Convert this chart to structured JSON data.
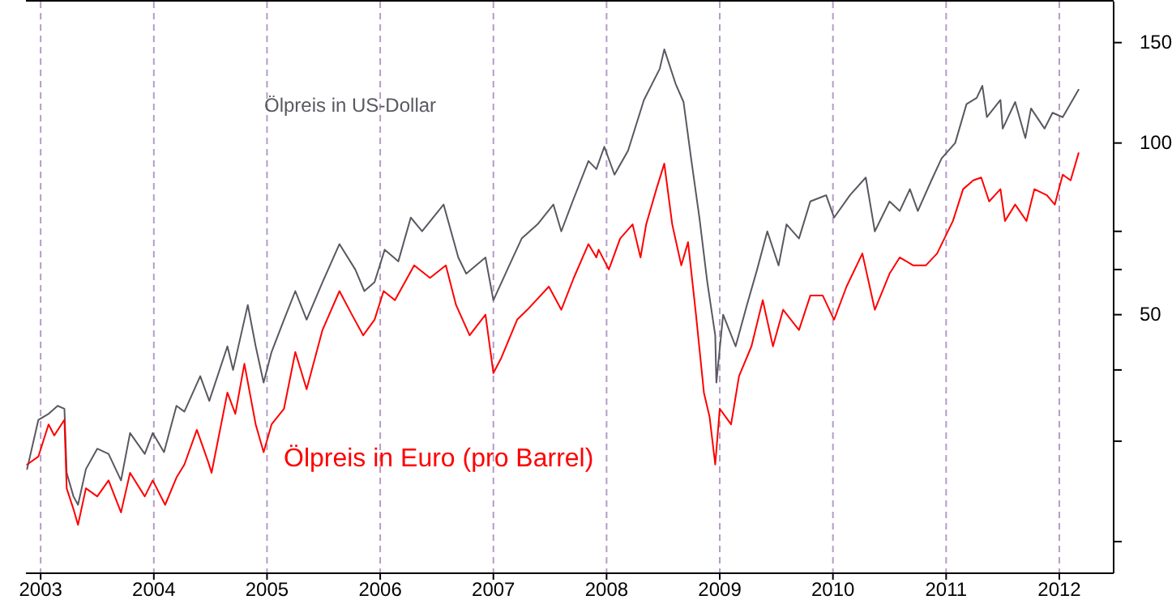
{
  "chart_data": {
    "type": "line",
    "log": "y",
    "grid": "x",
    "legend": false,
    "xlim": [
      2002.87,
      2012.48
    ],
    "xticks": [
      2003,
      2004,
      2005,
      2006,
      2007,
      2008,
      2009,
      2010,
      2011,
      2012
    ],
    "ylim": [
      17.6,
      177
    ],
    "yticks": [
      {
        "value": 20,
        "label": null
      },
      {
        "value": 30,
        "label": null
      },
      {
        "value": 40,
        "label": null
      },
      50,
      {
        "value": 60,
        "label": null
      },
      {
        "value": 70,
        "label": null
      },
      100,
      150
    ],
    "series": [
      {
        "name": "Ölpreis in US-Dollar",
        "color": "#5a5860",
        "x": [
          2002.88,
          2002.98,
          2003.07,
          2003.15,
          2003.21,
          2003.23,
          2003.29,
          2003.33,
          2003.4,
          2003.5,
          2003.6,
          2003.71,
          2003.79,
          2003.92,
          2003.99,
          2004.09,
          2004.2,
          2004.27,
          2004.41,
          2004.49,
          2004.65,
          2004.7,
          2004.83,
          2004.9,
          2004.97,
          2005.04,
          2005.15,
          2005.25,
          2005.35,
          2005.49,
          2005.64,
          2005.78,
          2005.86,
          2005.95,
          2006.04,
          2006.16,
          2006.27,
          2006.37,
          2006.56,
          2006.69,
          2006.76,
          2006.93,
          2007.0,
          2007.14,
          2007.25,
          2007.39,
          2007.53,
          2007.6,
          2007.7,
          2007.84,
          2007.91,
          2007.98,
          2008.07,
          2008.19,
          2008.33,
          2008.47,
          2008.51,
          2008.61,
          2008.68,
          2008.75,
          2008.82,
          2008.89,
          2008.96,
          2008.97,
          2009.03,
          2009.14,
          2009.24,
          2009.33,
          2009.42,
          2009.52,
          2009.59,
          2009.7,
          2009.8,
          2009.94,
          2010.01,
          2010.15,
          2010.29,
          2010.37,
          2010.5,
          2010.59,
          2010.68,
          2010.75,
          2010.87,
          2010.96,
          2011.08,
          2011.18,
          2011.27,
          2011.32,
          2011.36,
          2011.48,
          2011.5,
          2011.61,
          2011.7,
          2011.75,
          2011.87,
          2011.94,
          2012.03,
          2012.17
        ],
        "values": [
          26.8,
          32.7,
          33.5,
          34.6,
          34.2,
          26.4,
          24.0,
          23.2,
          26.8,
          29.1,
          28.5,
          25.6,
          31.0,
          28.5,
          31.0,
          28.7,
          34.6,
          33.8,
          39,
          35.3,
          44,
          40,
          52,
          44,
          38,
          43,
          49,
          55,
          49,
          57,
          66.5,
          60,
          55,
          57,
          65,
          62,
          74,
          70,
          78,
          63,
          59,
          63,
          53,
          61,
          68,
          72,
          78,
          70,
          79,
          93,
          90,
          98.5,
          88,
          97,
          119,
          135,
          146,
          127,
          118,
          93,
          74,
          57,
          46,
          38,
          50,
          44,
          52,
          60,
          70,
          61,
          72,
          68,
          79,
          81,
          74,
          81,
          87,
          70,
          79,
          76,
          83,
          76,
          86,
          94,
          100,
          117,
          120,
          126,
          111,
          119,
          106,
          118,
          102,
          115,
          106,
          113,
          111,
          124
        ]
      },
      {
        "name": "Ölpreis in Euro (pro Barrel)",
        "color": "#ff0000",
        "x": [
          2002.88,
          2002.98,
          2003.07,
          2003.12,
          2003.21,
          2003.23,
          2003.29,
          2003.33,
          2003.4,
          2003.5,
          2003.6,
          2003.71,
          2003.79,
          2003.92,
          2003.99,
          2004.1,
          2004.2,
          2004.27,
          2004.38,
          2004.48,
          2004.51,
          2004.65,
          2004.72,
          2004.8,
          2004.9,
          2004.97,
          2005.04,
          2005.15,
          2005.25,
          2005.35,
          2005.49,
          2005.64,
          2005.75,
          2005.85,
          2005.95,
          2006.03,
          2006.13,
          2006.3,
          2006.44,
          2006.58,
          2006.67,
          2006.79,
          2006.93,
          2007.0,
          2007.07,
          2007.21,
          2007.3,
          2007.49,
          2007.6,
          2007.71,
          2007.84,
          2007.91,
          2007.93,
          2008.02,
          2008.12,
          2008.23,
          2008.3,
          2008.35,
          2008.44,
          2008.51,
          2008.58,
          2008.66,
          2008.72,
          2008.79,
          2008.86,
          2008.91,
          2008.96,
          2009.0,
          2009.1,
          2009.17,
          2009.28,
          2009.38,
          2009.47,
          2009.56,
          2009.7,
          2009.8,
          2009.91,
          2010.01,
          2010.12,
          2010.26,
          2010.37,
          2010.5,
          2010.59,
          2010.71,
          2010.82,
          2010.92,
          2011.06,
          2011.15,
          2011.24,
          2011.31,
          2011.38,
          2011.48,
          2011.52,
          2011.61,
          2011.71,
          2011.78,
          2011.89,
          2011.96,
          2012.03,
          2012.1,
          2012.17
        ],
        "values": [
          27.3,
          28.2,
          32.1,
          30.7,
          32.7,
          24.8,
          22.8,
          21.4,
          24.8,
          24.0,
          25.6,
          22.5,
          26.4,
          24.0,
          25.6,
          23.2,
          25.9,
          27.3,
          31.4,
          27.6,
          26.4,
          36.5,
          33.5,
          41,
          32.1,
          28.7,
          32.1,
          34.2,
          43,
          37,
          47,
          55,
          50,
          46,
          49,
          55,
          53,
          61,
          58,
          61,
          52,
          46,
          50,
          39.5,
          42,
          49,
          51,
          56,
          51,
          58,
          66.5,
          63,
          65,
          60,
          68,
          72,
          63,
          72,
          83,
          92,
          72,
          61,
          67,
          50,
          36.5,
          33.1,
          27.3,
          34.2,
          32.1,
          39,
          44,
          53,
          44,
          51,
          47,
          54,
          54,
          49,
          56,
          64,
          51,
          59,
          63,
          61,
          61,
          64,
          73,
          83,
          86,
          87,
          79,
          83,
          73,
          78,
          73,
          83,
          81,
          78,
          88,
          86,
          96
        ]
      }
    ]
  }
}
